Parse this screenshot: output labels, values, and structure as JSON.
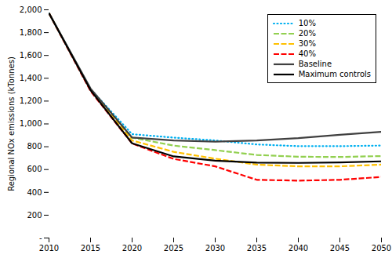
{
  "chart_data": {
    "type": "line",
    "ylabel": "Regional NOx emissions (kTonnes)",
    "x": [
      2010,
      2015,
      2020,
      2025,
      2030,
      2035,
      2040,
      2045,
      2050
    ],
    "series": [
      {
        "name": "10%",
        "color": "#00b0f0",
        "line_style": "dotted",
        "values": [
          1970,
          1305,
          910,
          880,
          855,
          820,
          805,
          805,
          810
        ]
      },
      {
        "name": "20%",
        "color": "#92d050",
        "line_style": "dashed",
        "values": [
          1970,
          1300,
          880,
          810,
          770,
          728,
          712,
          710,
          718
        ]
      },
      {
        "name": "30%",
        "color": "#ffc000",
        "line_style": "dashed",
        "values": [
          1970,
          1295,
          855,
          755,
          695,
          643,
          628,
          628,
          643
        ]
      },
      {
        "name": "40%",
        "color": "#ff0000",
        "line_style": "dashed",
        "values": [
          1970,
          1288,
          828,
          693,
          628,
          510,
          503,
          510,
          535
        ]
      },
      {
        "name": "Baseline",
        "color": "#404040",
        "line_style": "solid",
        "values": [
          1970,
          1310,
          880,
          855,
          845,
          855,
          875,
          905,
          930
        ]
      },
      {
        "name": "Maximum controls",
        "color": "#000000",
        "line_style": "solid",
        "values": [
          1970,
          1295,
          830,
          715,
          678,
          660,
          658,
          662,
          672
        ]
      }
    ],
    "xlim": [
      2010,
      2050
    ],
    "xticks": [
      2010,
      2015,
      2020,
      2025,
      2030,
      2035,
      2040,
      2045,
      2050
    ],
    "ylim": [
      0,
      2000
    ],
    "yticks": [
      {
        "value": 0,
        "label": "-"
      },
      200,
      400,
      600,
      800,
      {
        "value": 1000,
        "label": "1,000"
      },
      {
        "value": 1200,
        "label": "1,200"
      },
      {
        "value": 1400,
        "label": "1,400"
      },
      {
        "value": 1600,
        "label": "1,600"
      },
      {
        "value": 1800,
        "label": "1,800"
      },
      {
        "value": 2000,
        "label": "2,000"
      }
    ],
    "grid": false,
    "legend": "upper right"
  }
}
